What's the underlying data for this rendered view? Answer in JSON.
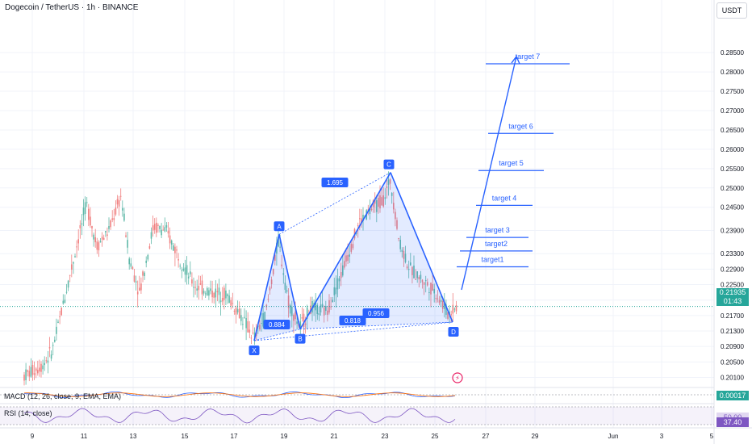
{
  "header": {
    "symbol_title": "Dogecoin / TetherUS · 1h · BINANCE",
    "currency_button": "USDT"
  },
  "chart_data": {
    "type": "candlestick",
    "y_axis_ticks": [
      "0.28500",
      "0.28000",
      "0.27500",
      "0.27000",
      "0.26500",
      "0.26000",
      "0.25500",
      "0.25000",
      "0.24500",
      "0.23900",
      "0.23300",
      "0.22900",
      "0.22500",
      "0.22100",
      "0.21700",
      "0.21300",
      "0.20900",
      "0.20500",
      "0.20100"
    ],
    "ylim": [
      0.2,
      0.287
    ],
    "x_axis_ticks": [
      "9",
      "11",
      "13",
      "15",
      "17",
      "19",
      "21",
      "23",
      "25",
      "27",
      "29",
      "Jun",
      "3",
      "5"
    ],
    "current_price": "0.21935",
    "countdown": "01:43",
    "pattern_points": [
      {
        "label": "X",
        "price": 0.2105
      },
      {
        "label": "A",
        "price": 0.238
      },
      {
        "label": "B",
        "price": 0.2135
      },
      {
        "label": "C",
        "price": 0.254
      },
      {
        "label": "D",
        "price": 0.2153
      }
    ],
    "ratios": [
      "0.884",
      "1.695",
      "0.818",
      "0.956"
    ],
    "targets": [
      {
        "label": "target1",
        "price": 0.2296
      },
      {
        "label": "target2",
        "price": 0.2337
      },
      {
        "label": "target 3",
        "price": 0.2372
      },
      {
        "label": "target 4",
        "price": 0.2455
      },
      {
        "label": "target 5",
        "price": 0.2545
      },
      {
        "label": "target 6",
        "price": 0.2641
      },
      {
        "label": "target 7",
        "price": 0.2821
      }
    ]
  },
  "indicators": {
    "macd_label": "MACD (12, 26, close, 9, EMA, EMA)",
    "macd_value": "0.00017",
    "rsi_label": "RSI (14, close)",
    "rsi_level": "50.00",
    "rsi_value": "37.40"
  },
  "colors": {
    "up": "#26a69a",
    "down": "#ef5350",
    "pattern": "#2962ff",
    "macd_badge": "#26a69a",
    "rsi_badge": "#7e57c2"
  }
}
